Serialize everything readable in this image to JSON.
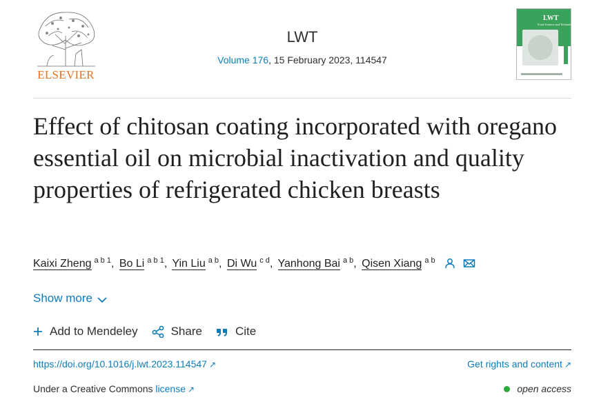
{
  "publisher": {
    "name": "ELSEVIER",
    "icons": {
      "logo": "elsevier-tree-logo",
      "cover": "journal-cover-thumbnail"
    },
    "colors": {
      "publisher_orange": "#e9711c",
      "link_blue": "#0c7dbb",
      "cover_green": "#3aa25a"
    }
  },
  "journal": {
    "name": "LWT",
    "volume_link": "Volume 176",
    "issue_info": ", 15 February 2023, 114547",
    "cover_title": "LWT",
    "cover_subtitle": "Food Science and Technology"
  },
  "article": {
    "title": "Effect of chitosan coating incorporated with oregano essential oil on microbial inactivation and quality properties of refrigerated chicken breasts"
  },
  "authors": [
    {
      "name": "Kaixi Zheng",
      "affil": "a b 1",
      "sep": ","
    },
    {
      "name": "Bo Li",
      "affil": "a b 1",
      "sep": ","
    },
    {
      "name": "Yin Liu",
      "affil": "a b",
      "sep": ","
    },
    {
      "name": "Di Wu",
      "affil": "c d",
      "sep": ","
    },
    {
      "name": "Yanhong Bai",
      "affil": "a b",
      "sep": ","
    },
    {
      "name": "Qisen Xiang",
      "affil": "a b",
      "sep": ""
    }
  ],
  "author_icons": [
    "person-icon",
    "envelope-icon"
  ],
  "show_more": {
    "label": "Show more",
    "icon": "chevron-down-icon"
  },
  "actions": [
    {
      "label": "Add to Mendeley",
      "icon": "plus-icon"
    },
    {
      "label": "Share",
      "icon": "share-icon"
    },
    {
      "label": "Cite",
      "icon": "quote-icon"
    }
  ],
  "links": {
    "doi": "https://doi.org/10.1016/j.lwt.2023.114547",
    "rights": "Get rights and content",
    "license_prefix": "Under a Creative Commons ",
    "license_link": "license",
    "external_icon": "↗",
    "open_access": "open access"
  }
}
